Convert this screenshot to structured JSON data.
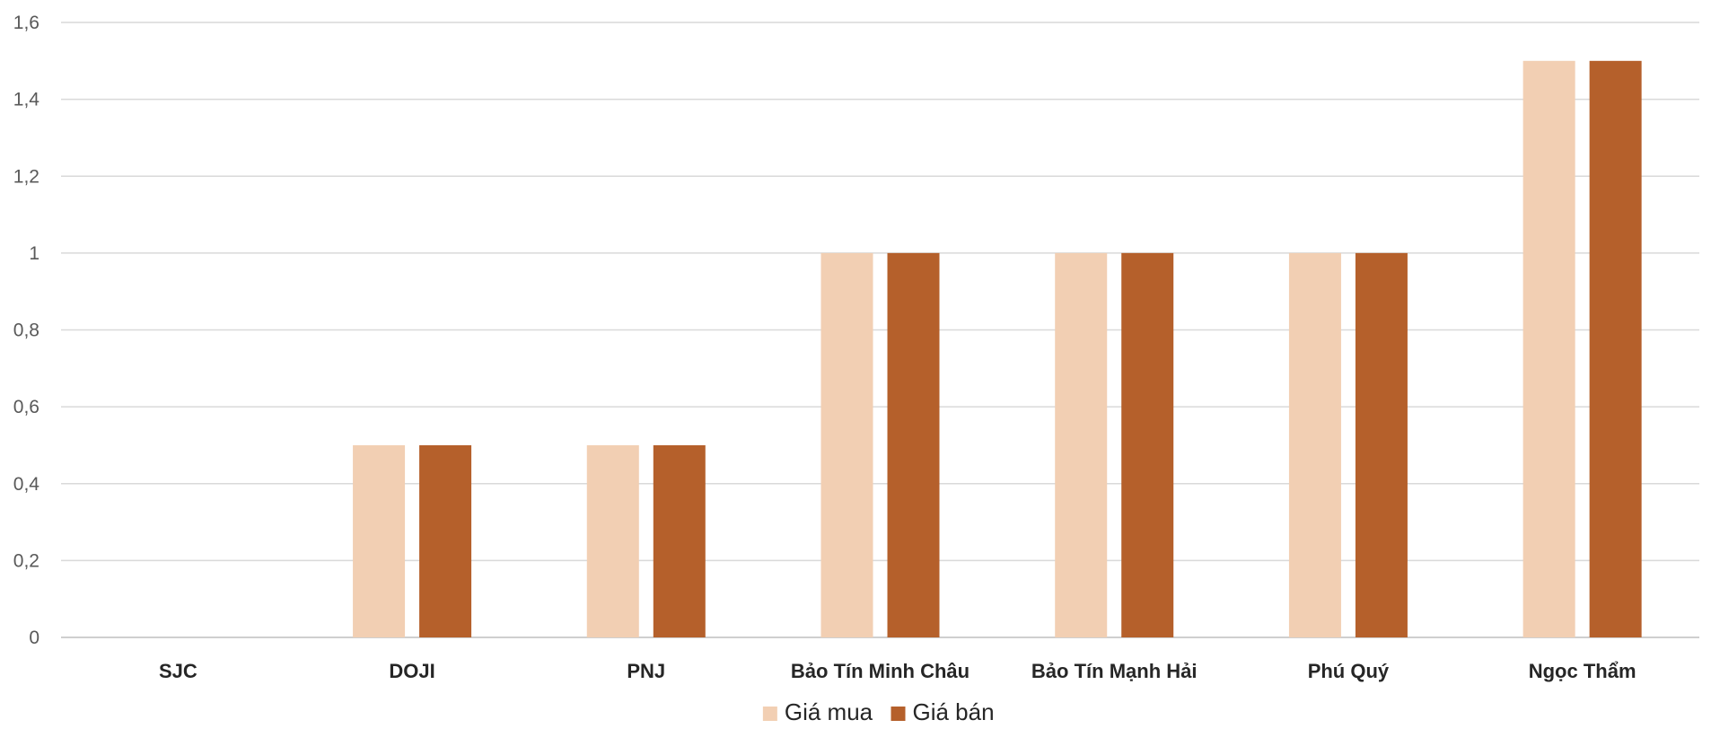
{
  "chart_data": {
    "type": "bar",
    "categories": [
      "SJC",
      "DOJI",
      "PNJ",
      "Bảo Tín Minh Châu",
      "Bảo Tín Mạnh Hải",
      "Phú Quý",
      "Ngọc Thẩm"
    ],
    "series": [
      {
        "name": "Giá mua",
        "values": [
          0,
          0.5,
          0.5,
          1,
          1,
          1,
          1.5
        ],
        "color": "#F2CFB3"
      },
      {
        "name": "Giá bán",
        "values": [
          0,
          0.5,
          0.5,
          1,
          1,
          1,
          1.5
        ],
        "color": "#B5602B"
      }
    ],
    "yticks": [
      "0",
      "0,2",
      "0,4",
      "0,6",
      "0,8",
      "1",
      "1,2",
      "1,4",
      "1,6"
    ],
    "ylim": [
      0,
      1.6
    ],
    "grid": true,
    "legend_position": "bottom"
  }
}
